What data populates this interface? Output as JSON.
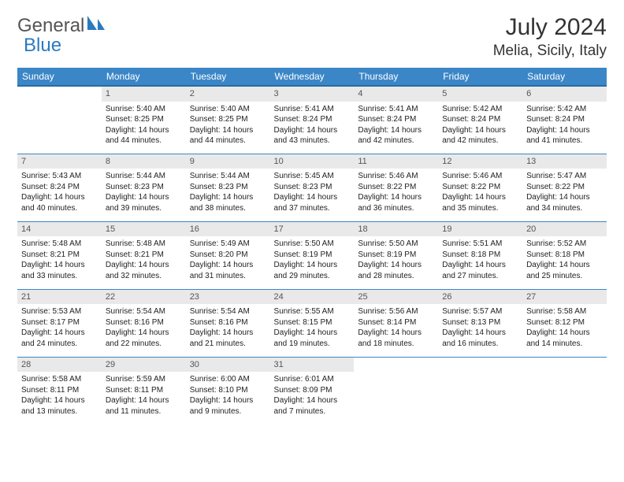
{
  "brand": {
    "part1": "General",
    "part2": "Blue"
  },
  "title": "July 2024",
  "location": "Melia, Sicily, Italy",
  "colors": {
    "header_bg": "#3b86c7",
    "header_text": "#ffffff",
    "daynum_bg": "#e9e9e9",
    "grid_line": "#3b86c7",
    "body_text": "#1a1a1a"
  },
  "weekdays": [
    "Sunday",
    "Monday",
    "Tuesday",
    "Wednesday",
    "Thursday",
    "Friday",
    "Saturday"
  ],
  "weeks": [
    [
      {
        "n": "",
        "sr": "",
        "ss": "",
        "dl": ""
      },
      {
        "n": "1",
        "sr": "Sunrise: 5:40 AM",
        "ss": "Sunset: 8:25 PM",
        "dl": "Daylight: 14 hours and 44 minutes."
      },
      {
        "n": "2",
        "sr": "Sunrise: 5:40 AM",
        "ss": "Sunset: 8:25 PM",
        "dl": "Daylight: 14 hours and 44 minutes."
      },
      {
        "n": "3",
        "sr": "Sunrise: 5:41 AM",
        "ss": "Sunset: 8:24 PM",
        "dl": "Daylight: 14 hours and 43 minutes."
      },
      {
        "n": "4",
        "sr": "Sunrise: 5:41 AM",
        "ss": "Sunset: 8:24 PM",
        "dl": "Daylight: 14 hours and 42 minutes."
      },
      {
        "n": "5",
        "sr": "Sunrise: 5:42 AM",
        "ss": "Sunset: 8:24 PM",
        "dl": "Daylight: 14 hours and 42 minutes."
      },
      {
        "n": "6",
        "sr": "Sunrise: 5:42 AM",
        "ss": "Sunset: 8:24 PM",
        "dl": "Daylight: 14 hours and 41 minutes."
      }
    ],
    [
      {
        "n": "7",
        "sr": "Sunrise: 5:43 AM",
        "ss": "Sunset: 8:24 PM",
        "dl": "Daylight: 14 hours and 40 minutes."
      },
      {
        "n": "8",
        "sr": "Sunrise: 5:44 AM",
        "ss": "Sunset: 8:23 PM",
        "dl": "Daylight: 14 hours and 39 minutes."
      },
      {
        "n": "9",
        "sr": "Sunrise: 5:44 AM",
        "ss": "Sunset: 8:23 PM",
        "dl": "Daylight: 14 hours and 38 minutes."
      },
      {
        "n": "10",
        "sr": "Sunrise: 5:45 AM",
        "ss": "Sunset: 8:23 PM",
        "dl": "Daylight: 14 hours and 37 minutes."
      },
      {
        "n": "11",
        "sr": "Sunrise: 5:46 AM",
        "ss": "Sunset: 8:22 PM",
        "dl": "Daylight: 14 hours and 36 minutes."
      },
      {
        "n": "12",
        "sr": "Sunrise: 5:46 AM",
        "ss": "Sunset: 8:22 PM",
        "dl": "Daylight: 14 hours and 35 minutes."
      },
      {
        "n": "13",
        "sr": "Sunrise: 5:47 AM",
        "ss": "Sunset: 8:22 PM",
        "dl": "Daylight: 14 hours and 34 minutes."
      }
    ],
    [
      {
        "n": "14",
        "sr": "Sunrise: 5:48 AM",
        "ss": "Sunset: 8:21 PM",
        "dl": "Daylight: 14 hours and 33 minutes."
      },
      {
        "n": "15",
        "sr": "Sunrise: 5:48 AM",
        "ss": "Sunset: 8:21 PM",
        "dl": "Daylight: 14 hours and 32 minutes."
      },
      {
        "n": "16",
        "sr": "Sunrise: 5:49 AM",
        "ss": "Sunset: 8:20 PM",
        "dl": "Daylight: 14 hours and 31 minutes."
      },
      {
        "n": "17",
        "sr": "Sunrise: 5:50 AM",
        "ss": "Sunset: 8:19 PM",
        "dl": "Daylight: 14 hours and 29 minutes."
      },
      {
        "n": "18",
        "sr": "Sunrise: 5:50 AM",
        "ss": "Sunset: 8:19 PM",
        "dl": "Daylight: 14 hours and 28 minutes."
      },
      {
        "n": "19",
        "sr": "Sunrise: 5:51 AM",
        "ss": "Sunset: 8:18 PM",
        "dl": "Daylight: 14 hours and 27 minutes."
      },
      {
        "n": "20",
        "sr": "Sunrise: 5:52 AM",
        "ss": "Sunset: 8:18 PM",
        "dl": "Daylight: 14 hours and 25 minutes."
      }
    ],
    [
      {
        "n": "21",
        "sr": "Sunrise: 5:53 AM",
        "ss": "Sunset: 8:17 PM",
        "dl": "Daylight: 14 hours and 24 minutes."
      },
      {
        "n": "22",
        "sr": "Sunrise: 5:54 AM",
        "ss": "Sunset: 8:16 PM",
        "dl": "Daylight: 14 hours and 22 minutes."
      },
      {
        "n": "23",
        "sr": "Sunrise: 5:54 AM",
        "ss": "Sunset: 8:16 PM",
        "dl": "Daylight: 14 hours and 21 minutes."
      },
      {
        "n": "24",
        "sr": "Sunrise: 5:55 AM",
        "ss": "Sunset: 8:15 PM",
        "dl": "Daylight: 14 hours and 19 minutes."
      },
      {
        "n": "25",
        "sr": "Sunrise: 5:56 AM",
        "ss": "Sunset: 8:14 PM",
        "dl": "Daylight: 14 hours and 18 minutes."
      },
      {
        "n": "26",
        "sr": "Sunrise: 5:57 AM",
        "ss": "Sunset: 8:13 PM",
        "dl": "Daylight: 14 hours and 16 minutes."
      },
      {
        "n": "27",
        "sr": "Sunrise: 5:58 AM",
        "ss": "Sunset: 8:12 PM",
        "dl": "Daylight: 14 hours and 14 minutes."
      }
    ],
    [
      {
        "n": "28",
        "sr": "Sunrise: 5:58 AM",
        "ss": "Sunset: 8:11 PM",
        "dl": "Daylight: 14 hours and 13 minutes."
      },
      {
        "n": "29",
        "sr": "Sunrise: 5:59 AM",
        "ss": "Sunset: 8:11 PM",
        "dl": "Daylight: 14 hours and 11 minutes."
      },
      {
        "n": "30",
        "sr": "Sunrise: 6:00 AM",
        "ss": "Sunset: 8:10 PM",
        "dl": "Daylight: 14 hours and 9 minutes."
      },
      {
        "n": "31",
        "sr": "Sunrise: 6:01 AM",
        "ss": "Sunset: 8:09 PM",
        "dl": "Daylight: 14 hours and 7 minutes."
      },
      {
        "n": "",
        "sr": "",
        "ss": "",
        "dl": ""
      },
      {
        "n": "",
        "sr": "",
        "ss": "",
        "dl": ""
      },
      {
        "n": "",
        "sr": "",
        "ss": "",
        "dl": ""
      }
    ]
  ]
}
